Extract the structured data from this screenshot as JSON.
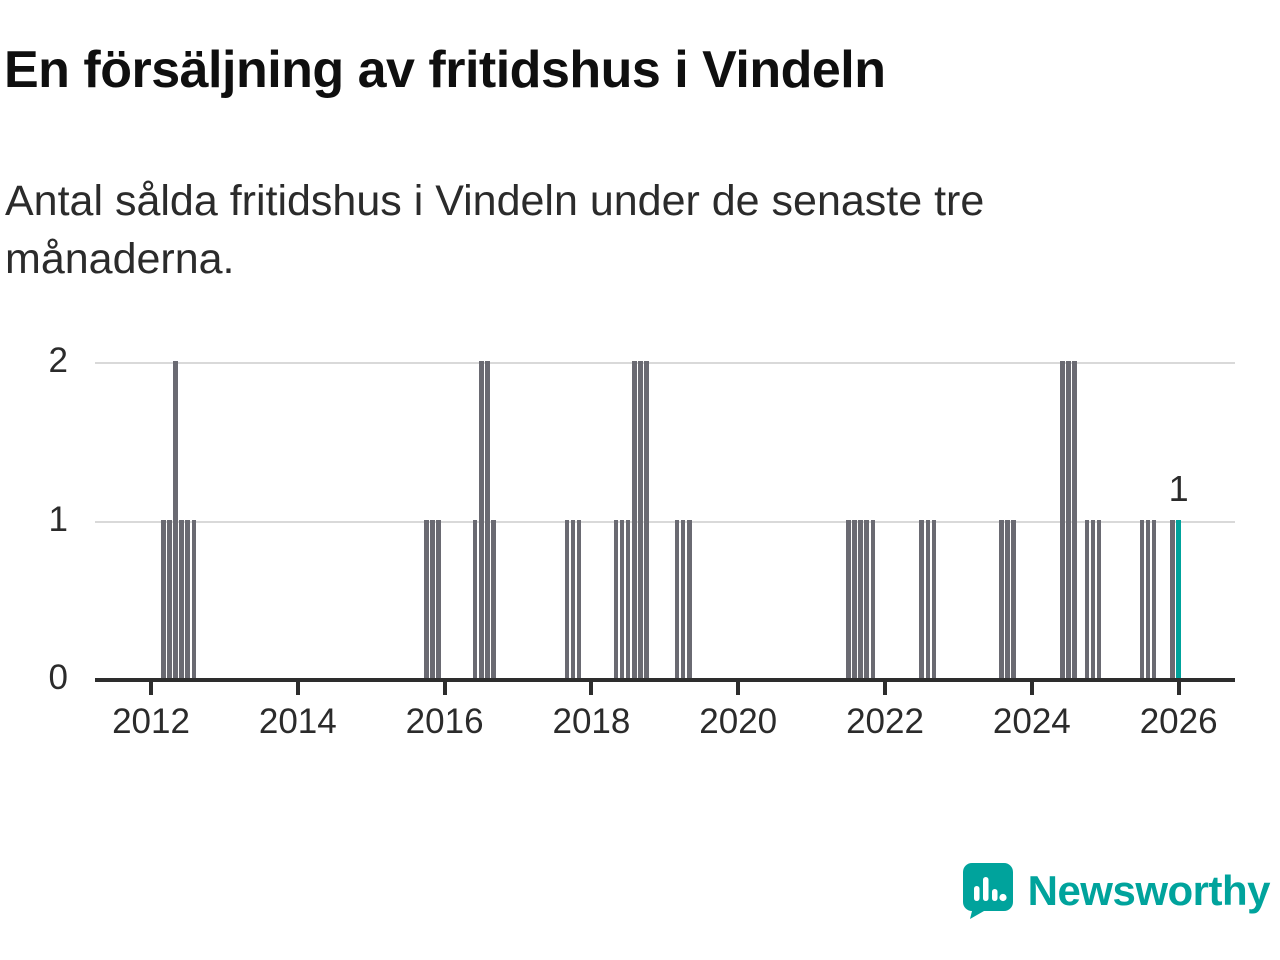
{
  "title": "En försäljning av fritidshus i Vindeln",
  "subtitle_lines": [
    "Antal sålda fritidshus i Vindeln under de senaste tre",
    "månaderna."
  ],
  "logo": {
    "text": "Newsworthy",
    "icon": "bar-chart-speech-bubble"
  },
  "colors": {
    "bar": "#6a6a72",
    "highlight": "#00a39c",
    "grid": "#d9d9d9",
    "axis": "#2d2d2d",
    "logo": "#00a39c"
  },
  "chart_data": {
    "type": "bar",
    "title": "En försäljning av fritidshus i Vindeln",
    "subtitle": "Antal sålda fritidshus i Vindeln under de senaste tre månaderna.",
    "xlabel": "",
    "ylabel": "",
    "x_unit": "month",
    "ylim": [
      0,
      2
    ],
    "grid": "horizontal",
    "y_tick_labels": [
      "0",
      "1",
      "2"
    ],
    "x_tick_labels": [
      "2012",
      "2014",
      "2016",
      "2018",
      "2020",
      "2022",
      "2024",
      "2026"
    ],
    "last_value_label": "1",
    "bars": [
      {
        "date": "2012-03",
        "value": 1
      },
      {
        "date": "2012-04",
        "value": 1
      },
      {
        "date": "2012-05",
        "value": 2
      },
      {
        "date": "2012-06",
        "value": 1
      },
      {
        "date": "2012-07",
        "value": 1
      },
      {
        "date": "2012-08",
        "value": 1
      },
      {
        "date": "2015-10",
        "value": 1
      },
      {
        "date": "2015-11",
        "value": 1
      },
      {
        "date": "2015-12",
        "value": 1
      },
      {
        "date": "2016-06",
        "value": 1
      },
      {
        "date": "2016-07",
        "value": 2
      },
      {
        "date": "2016-08",
        "value": 2
      },
      {
        "date": "2016-09",
        "value": 1
      },
      {
        "date": "2017-09",
        "value": 1
      },
      {
        "date": "2017-10",
        "value": 1
      },
      {
        "date": "2017-11",
        "value": 1
      },
      {
        "date": "2018-05",
        "value": 1
      },
      {
        "date": "2018-06",
        "value": 1
      },
      {
        "date": "2018-07",
        "value": 1
      },
      {
        "date": "2018-08",
        "value": 2
      },
      {
        "date": "2018-09",
        "value": 2
      },
      {
        "date": "2018-10",
        "value": 2
      },
      {
        "date": "2019-03",
        "value": 1
      },
      {
        "date": "2019-04",
        "value": 1
      },
      {
        "date": "2019-05",
        "value": 1
      },
      {
        "date": "2021-07",
        "value": 1
      },
      {
        "date": "2021-08",
        "value": 1
      },
      {
        "date": "2021-09",
        "value": 1
      },
      {
        "date": "2021-10",
        "value": 1
      },
      {
        "date": "2021-11",
        "value": 1
      },
      {
        "date": "2022-07",
        "value": 1
      },
      {
        "date": "2022-08",
        "value": 1
      },
      {
        "date": "2022-09",
        "value": 1
      },
      {
        "date": "2023-08",
        "value": 1
      },
      {
        "date": "2023-09",
        "value": 1
      },
      {
        "date": "2023-10",
        "value": 1
      },
      {
        "date": "2024-06",
        "value": 2
      },
      {
        "date": "2024-07",
        "value": 2
      },
      {
        "date": "2024-08",
        "value": 2
      },
      {
        "date": "2024-10",
        "value": 1
      },
      {
        "date": "2024-11",
        "value": 1
      },
      {
        "date": "2024-12",
        "value": 1
      },
      {
        "date": "2025-07",
        "value": 1
      },
      {
        "date": "2025-08",
        "value": 1
      },
      {
        "date": "2025-09",
        "value": 1
      },
      {
        "date": "2025-12",
        "value": 1
      },
      {
        "date": "2026-01",
        "value": 1,
        "highlight": true
      }
    ]
  }
}
